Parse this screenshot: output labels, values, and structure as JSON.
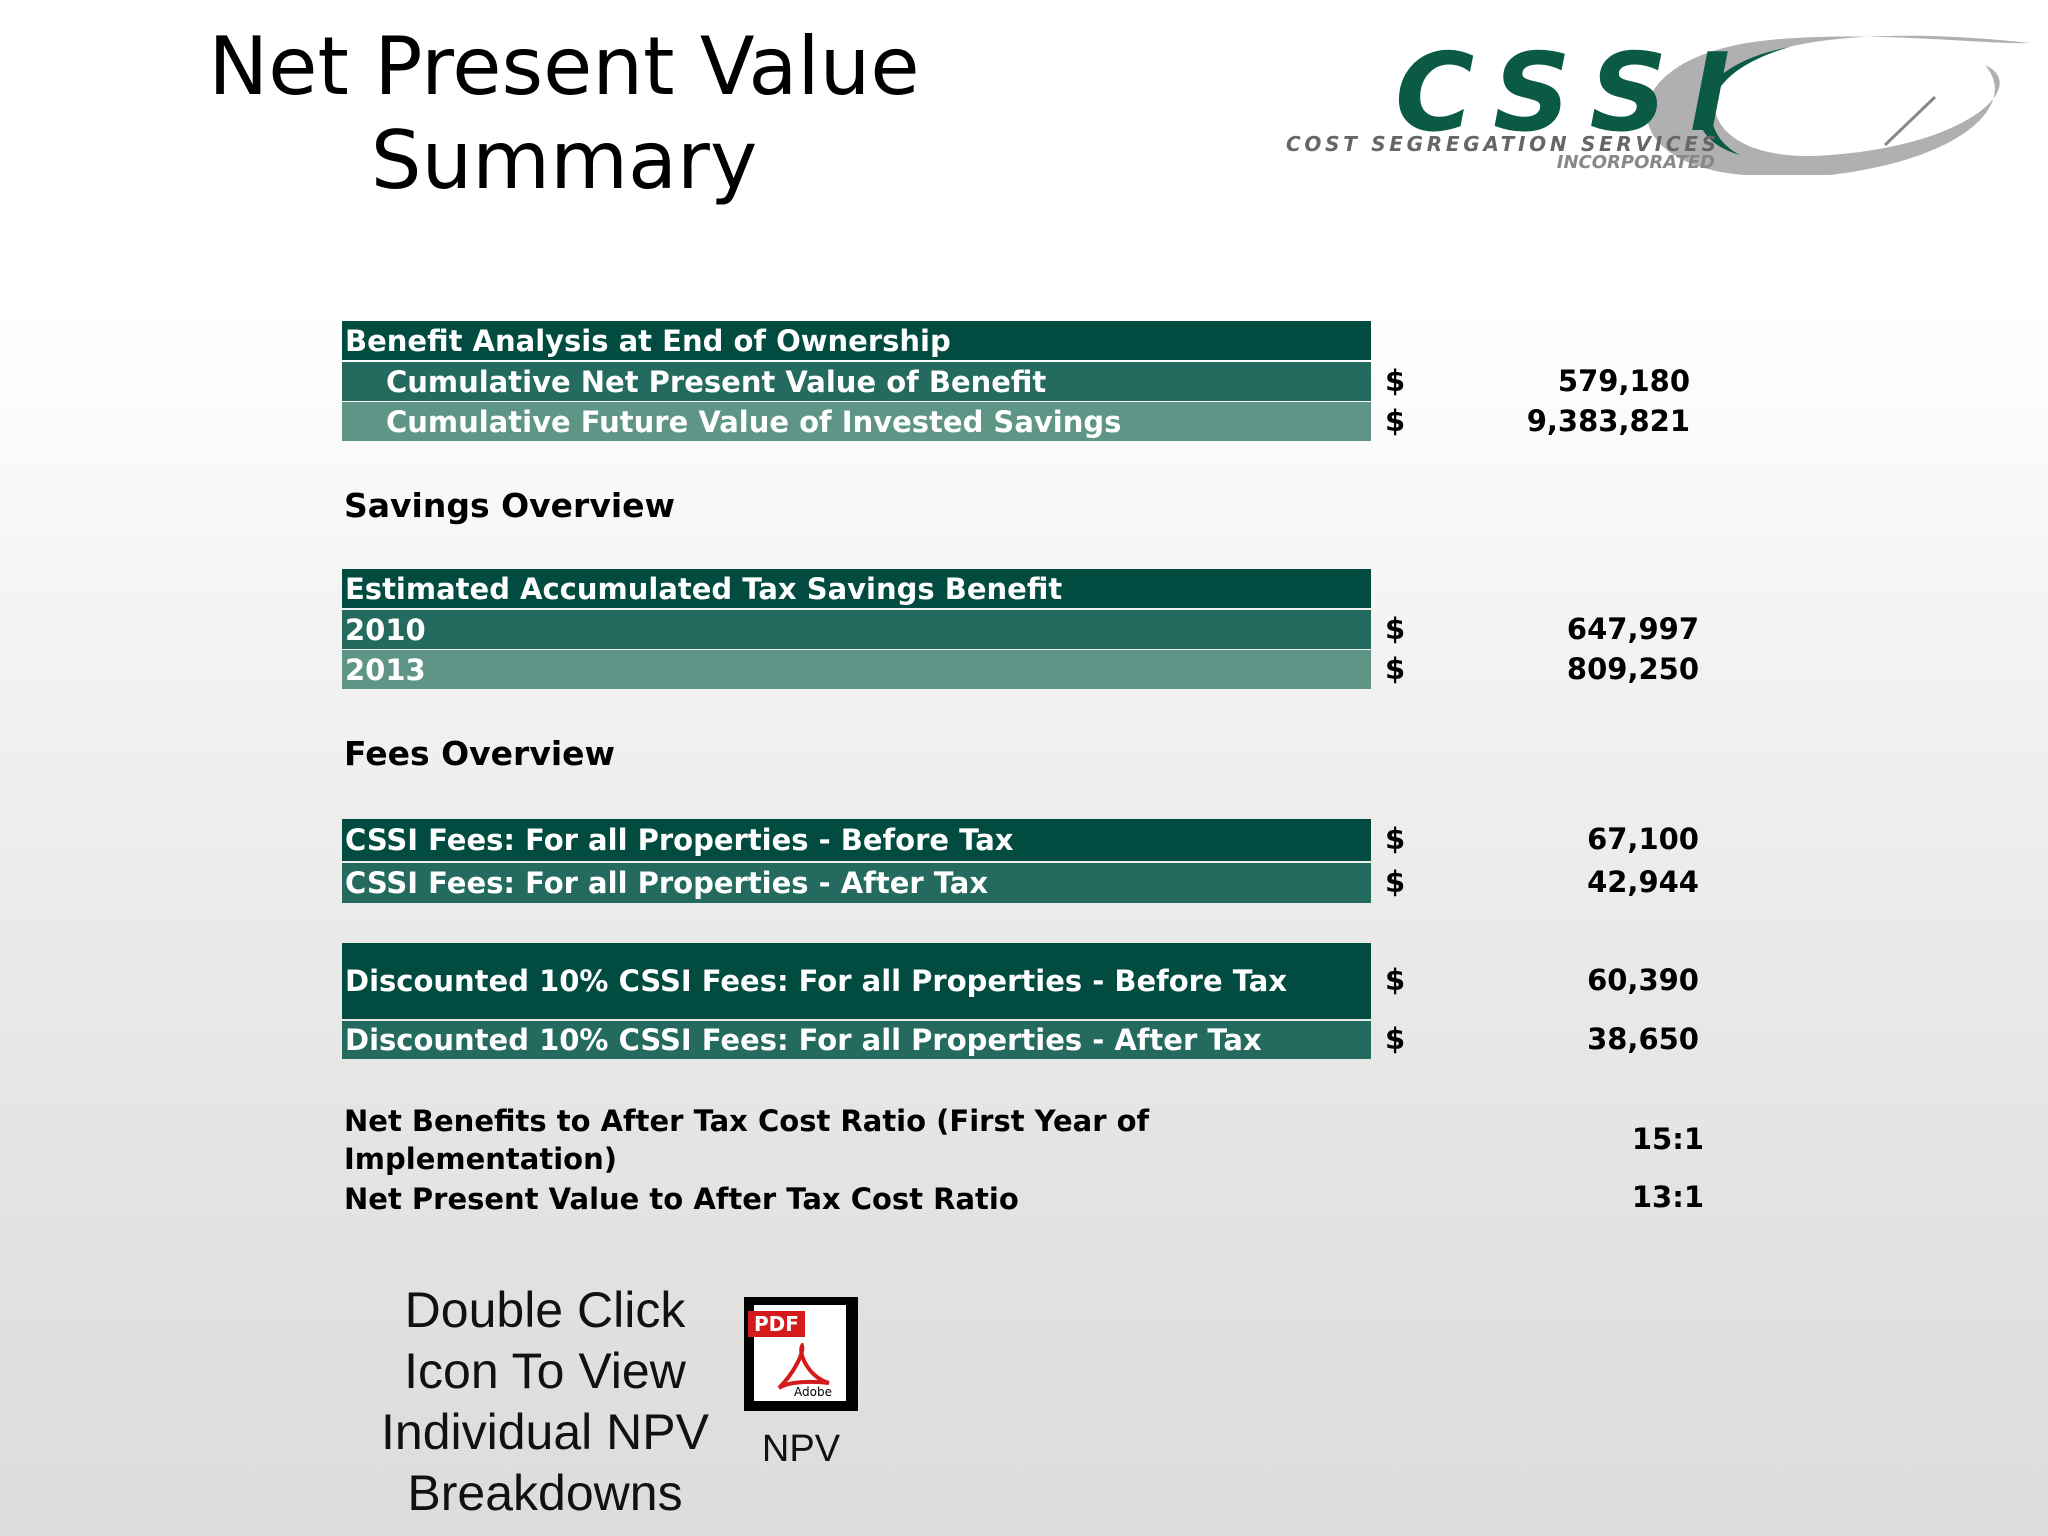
{
  "header": {
    "title": "Net Present Value Summary"
  },
  "logo": {
    "name": "CSSI",
    "line1": "COST SEGREGATION SERVICES",
    "line2": "INCORPORATED"
  },
  "benefit": {
    "title": "Benefit Analysis at End of Ownership",
    "rows": [
      {
        "label": "Cumulative Net Present Value of Benefit",
        "currency": "$",
        "value": "579,180"
      },
      {
        "label": "Cumulative Future Value of Invested Savings",
        "currency": "$",
        "value": "9,383,821"
      }
    ]
  },
  "savings": {
    "heading": "Savings Overview",
    "title": "Estimated Accumulated Tax Savings Benefit",
    "rows": [
      {
        "label": "2010",
        "currency": "$",
        "value": "647,997"
      },
      {
        "label": "2013",
        "currency": "$",
        "value": "809,250"
      }
    ]
  },
  "fees": {
    "heading": "Fees Overview",
    "rows": [
      {
        "label": "CSSI Fees: For all Properties - Before Tax",
        "currency": "$",
        "value": "67,100"
      },
      {
        "label": "CSSI Fees: For all Properties - After Tax",
        "currency": "$",
        "value": "42,944"
      }
    ],
    "discounted": [
      {
        "label": "Discounted 10% CSSI Fees: For all Properties - Before Tax",
        "currency": "$",
        "value": "60,390"
      },
      {
        "label": "Discounted 10% CSSI Fees: For all Properties - After Tax",
        "currency": "$",
        "value": "38,650"
      }
    ]
  },
  "ratios": [
    {
      "label": "Net Benefits to After Tax Cost Ratio (First Year of Implementation)",
      "value": "15:1"
    },
    {
      "label": "Net Present Value to After Tax Cost Ratio",
      "value": "13:1"
    }
  ],
  "footer": {
    "instruction": "Double Click Icon To View Individual NPV Breakdowns",
    "icon_badge": "PDF",
    "icon_brand": "Adobe",
    "icon_label": "NPV"
  }
}
